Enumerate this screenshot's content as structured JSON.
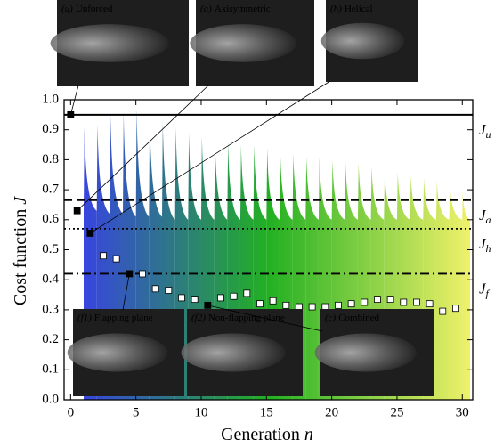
{
  "chart_data": {
    "type": "scatter",
    "y_label": {
      "text": "Cost function",
      "symbol": "J"
    },
    "x_label": {
      "text": "Generation",
      "symbol": "n"
    },
    "xlim": [
      -0.5,
      30.8
    ],
    "ylim": [
      0,
      1
    ],
    "xticks": [
      0,
      5,
      10,
      15,
      20,
      25,
      30
    ],
    "yticks": [
      {
        "value": 0,
        "label": "0.0"
      },
      0.1,
      0.2,
      0.3,
      0.4,
      0.5,
      0.6,
      0.7,
      0.8,
      0.9,
      {
        "value": 1,
        "label": "1.0"
      }
    ],
    "spikes": {
      "x": [
        1,
        2,
        3,
        4,
        5,
        6,
        7,
        8,
        9,
        10,
        11,
        12,
        13,
        14,
        15,
        16,
        17,
        18,
        19,
        20,
        21,
        22,
        23,
        24,
        25,
        26,
        27,
        28,
        29,
        30
      ],
      "peaks": [
        0.91,
        0.92,
        0.95,
        0.96,
        0.97,
        0.95,
        0.93,
        0.91,
        0.89,
        0.88,
        0.87,
        0.86,
        0.85,
        0.85,
        0.84,
        0.83,
        0.82,
        0.81,
        0.81,
        0.8,
        0.79,
        0.79,
        0.78,
        0.77,
        0.76,
        0.75,
        0.74,
        0.73,
        0.72,
        0.7
      ],
      "troughs": [
        0.63,
        0.62,
        0.62,
        0.61,
        0.61,
        0.61,
        0.6,
        0.6,
        0.6,
        0.6,
        0.6,
        0.6,
        0.6,
        0.6,
        0.6,
        0.6,
        0.6,
        0.6,
        0.6,
        0.6,
        0.6,
        0.6,
        0.6,
        0.6,
        0.6,
        0.6,
        0.6,
        0.6,
        0.6,
        0.6
      ],
      "colors": [
        "#3a3af2",
        "#22b022",
        "#f2f26a"
      ]
    },
    "series": [
      {
        "marker": "square",
        "color": "#ffffff",
        "x": [
          2.5,
          3.5,
          5.5,
          6.5,
          7.5,
          8.5,
          9.5,
          11.5,
          12.5,
          13.5,
          14.5,
          15.5,
          16.5,
          17.5,
          18.5,
          19.5,
          20.5,
          21.5,
          22.5,
          23.5,
          24.5,
          25.5,
          26.5,
          27.5,
          28.5,
          29.5
        ],
        "values": [
          0.48,
          0.47,
          0.42,
          0.37,
          0.365,
          0.34,
          0.335,
          0.34,
          0.345,
          0.355,
          0.32,
          0.33,
          0.315,
          0.31,
          0.31,
          0.31,
          0.315,
          0.32,
          0.325,
          0.335,
          0.335,
          0.325,
          0.325,
          0.32,
          0.295,
          0.305
        ]
      },
      {
        "marker": "square",
        "color": "#000000",
        "x": [
          0,
          0.5,
          1.5,
          4.5,
          10.5
        ],
        "values": [
          0.95,
          0.63,
          0.555,
          0.42,
          0.315
        ]
      }
    ],
    "reference_lines": [
      {
        "value": 0.95,
        "style": "solid",
        "symbol": "J",
        "sub": "u"
      },
      {
        "value": 0.665,
        "style": "dashed",
        "symbol": "J",
        "sub": "a"
      },
      {
        "value": 0.57,
        "style": "dotted",
        "symbol": "J",
        "sub": "h"
      },
      {
        "value": 0.42,
        "style": "dashdot",
        "symbol": "J",
        "sub": "f"
      }
    ],
    "insets": [
      {
        "tag": "(u)",
        "label": "Unforced"
      },
      {
        "tag": "(a)",
        "label": "Axisymmetric"
      },
      {
        "tag": "(h)",
        "label": "Helical"
      },
      {
        "tag": "(f1)",
        "label": "Flapping plane"
      },
      {
        "tag": "(f2)",
        "label": "Non-flapping plane"
      },
      {
        "tag": "(c)",
        "label": "Combined"
      }
    ]
  }
}
